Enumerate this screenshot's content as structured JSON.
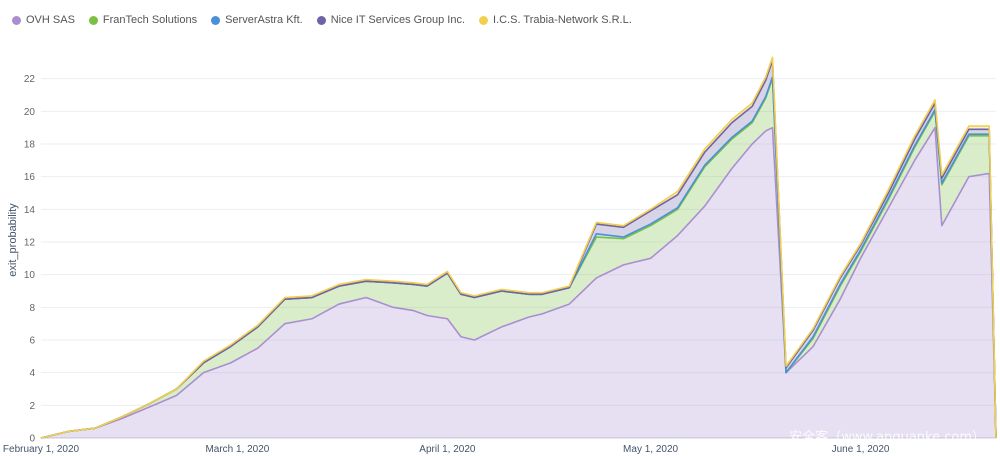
{
  "chart_data": {
    "type": "area",
    "stacked": true,
    "ylabel": "exit_probability",
    "xlabel": "",
    "ylim": [
      0,
      24
    ],
    "yticks": [
      0,
      2,
      4,
      6,
      8,
      10,
      12,
      14,
      16,
      18,
      20,
      22
    ],
    "xticks": [
      {
        "label": "February 1, 2020",
        "date": "2020-02-01"
      },
      {
        "label": "March 1, 2020",
        "date": "2020-03-01"
      },
      {
        "label": "April 1, 2020",
        "date": "2020-04-01"
      },
      {
        "label": "May 1, 2020",
        "date": "2020-05-01"
      },
      {
        "label": "June 1, 2020",
        "date": "2020-06-01"
      }
    ],
    "x_start": "2020-02-01",
    "x_end": "2020-06-21",
    "grid": true,
    "legend_position": "top-left",
    "dates": [
      "2020-02-01",
      "2020-02-05",
      "2020-02-09",
      "2020-02-13",
      "2020-02-17",
      "2020-02-21",
      "2020-02-25",
      "2020-02-29",
      "2020-03-04",
      "2020-03-08",
      "2020-03-12",
      "2020-03-16",
      "2020-03-20",
      "2020-03-24",
      "2020-03-27",
      "2020-03-29",
      "2020-04-01",
      "2020-04-03",
      "2020-04-05",
      "2020-04-09",
      "2020-04-13",
      "2020-04-15",
      "2020-04-19",
      "2020-04-23",
      "2020-04-27",
      "2020-05-01",
      "2020-05-05",
      "2020-05-09",
      "2020-05-13",
      "2020-05-16",
      "2020-05-18",
      "2020-05-19",
      "2020-05-21",
      "2020-05-25",
      "2020-05-29",
      "2020-06-01",
      "2020-06-05",
      "2020-06-09",
      "2020-06-12",
      "2020-06-13",
      "2020-06-17",
      "2020-06-20",
      "2020-06-21"
    ],
    "series": [
      {
        "name": "OVH SAS",
        "color": "#a98fd0",
        "values": [
          0.0,
          0.4,
          0.6,
          1.2,
          1.9,
          2.6,
          4.0,
          4.6,
          5.5,
          7.0,
          7.3,
          8.2,
          8.6,
          8.0,
          7.8,
          7.5,
          7.3,
          6.2,
          6.0,
          6.8,
          7.4,
          7.6,
          8.2,
          9.8,
          10.6,
          11.0,
          12.4,
          14.2,
          16.5,
          18.0,
          18.8,
          19.0,
          4.0,
          5.6,
          8.5,
          11.0,
          14.0,
          17.0,
          19.0,
          13.0,
          16.0,
          16.2,
          0.0
        ]
      },
      {
        "name": "FranTech Solutions",
        "color": "#7bc043",
        "values": [
          0.0,
          0.0,
          0.0,
          0.1,
          0.2,
          0.4,
          0.6,
          1.0,
          1.3,
          1.5,
          1.3,
          1.1,
          1.0,
          1.5,
          1.6,
          1.8,
          2.8,
          2.6,
          2.6,
          2.2,
          1.4,
          1.2,
          1.0,
          2.5,
          1.6,
          2.0,
          1.6,
          2.4,
          1.8,
          1.3,
          2.0,
          3.0,
          0.0,
          0.5,
          0.8,
          0.4,
          0.5,
          0.8,
          1.0,
          2.5,
          2.5,
          2.3,
          0.0
        ]
      },
      {
        "name": "ServerAstra Kft.",
        "color": "#4a90d9",
        "values": [
          0.0,
          0.0,
          0.0,
          0.0,
          0.0,
          0.0,
          0.0,
          0.0,
          0.0,
          0.0,
          0.0,
          0.0,
          0.0,
          0.0,
          0.0,
          0.0,
          0.0,
          0.0,
          0.0,
          0.0,
          0.0,
          0.0,
          0.0,
          0.2,
          0.1,
          0.1,
          0.1,
          0.1,
          0.1,
          0.1,
          0.1,
          0.1,
          0.0,
          0.1,
          0.1,
          0.1,
          0.1,
          0.1,
          0.1,
          0.1,
          0.1,
          0.1,
          0.0
        ]
      },
      {
        "name": "Nice IT Services Group Inc.",
        "color": "#6f63a8",
        "values": [
          0.0,
          0.0,
          0.0,
          0.0,
          0.0,
          0.0,
          0.0,
          0.0,
          0.0,
          0.0,
          0.0,
          0.0,
          0.0,
          0.0,
          0.0,
          0.0,
          0.0,
          0.0,
          0.0,
          0.0,
          0.0,
          0.0,
          0.0,
          0.6,
          0.6,
          0.8,
          0.8,
          0.8,
          0.9,
          0.9,
          1.0,
          1.0,
          0.3,
          0.4,
          0.4,
          0.3,
          0.3,
          0.4,
          0.4,
          0.3,
          0.3,
          0.3,
          0.0
        ]
      },
      {
        "name": "I.C.S. Trabia-Network S.R.L.",
        "color": "#f2d04e",
        "values": [
          0.0,
          0.0,
          0.0,
          0.0,
          0.0,
          0.0,
          0.1,
          0.1,
          0.1,
          0.1,
          0.1,
          0.1,
          0.1,
          0.1,
          0.1,
          0.1,
          0.1,
          0.1,
          0.1,
          0.1,
          0.1,
          0.1,
          0.1,
          0.1,
          0.1,
          0.1,
          0.2,
          0.2,
          0.2,
          0.2,
          0.2,
          0.2,
          0.1,
          0.1,
          0.1,
          0.1,
          0.2,
          0.2,
          0.2,
          0.2,
          0.2,
          0.2,
          0.0
        ]
      }
    ]
  },
  "watermark": "安全客（www.anquanke.com）"
}
